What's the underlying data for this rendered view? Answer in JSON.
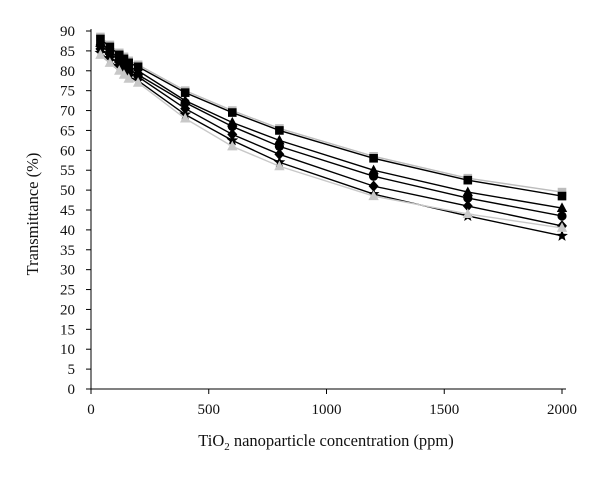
{
  "chart_data": {
    "type": "line",
    "title": "",
    "xlabel_parts": [
      "TiO",
      "2",
      " nanoparticle concentration (ppm)"
    ],
    "ylabel": "Transmittance (%)",
    "xlim": [
      0,
      2000
    ],
    "ylim": [
      0,
      90
    ],
    "x_ticks": [
      0,
      500,
      1000,
      1500,
      2000
    ],
    "y_ticks": [
      0,
      5,
      10,
      15,
      20,
      25,
      30,
      35,
      40,
      45,
      50,
      55,
      60,
      65,
      70,
      75,
      80,
      85,
      90
    ],
    "grid": false,
    "legend": "none",
    "x": [
      40,
      80,
      120,
      140,
      160,
      200,
      400,
      600,
      800,
      1200,
      1600,
      2000
    ],
    "series": [
      {
        "marker": "square",
        "color": "#bdbdbd",
        "values": [
          88.5,
          86.5,
          84.5,
          83.5,
          82.5,
          81.5,
          75,
          70,
          65.5,
          58.5,
          53,
          49.5
        ]
      },
      {
        "marker": "square",
        "color": "#000000",
        "values": [
          88,
          86,
          84,
          83,
          82,
          81,
          74.5,
          69.5,
          65,
          58,
          52.5,
          48.5
        ]
      },
      {
        "marker": "triangle",
        "color": "#000000",
        "values": [
          87,
          85,
          83,
          82,
          81,
          80,
          72.5,
          67,
          62.5,
          55,
          49.5,
          45.5
        ]
      },
      {
        "marker": "circle",
        "color": "#000000",
        "values": [
          86.5,
          84.5,
          82.5,
          81.5,
          80.5,
          79,
          72,
          66,
          61,
          53.5,
          48,
          43.5
        ]
      },
      {
        "marker": "diamond",
        "color": "#000000",
        "values": [
          85.5,
          83.5,
          81.5,
          80.5,
          79.5,
          78.5,
          70.5,
          64,
          59,
          51,
          46,
          41
        ]
      },
      {
        "marker": "star",
        "color": "#000000",
        "values": [
          84.5,
          82.5,
          80.5,
          79.5,
          78.5,
          77.5,
          69,
          62.5,
          57,
          49,
          43.5,
          38.5
        ]
      },
      {
        "marker": "triangle",
        "color": "#c8c8c8",
        "values": [
          84,
          82,
          80,
          79,
          78,
          77,
          68,
          61,
          56,
          48.5,
          44,
          40.5
        ]
      }
    ]
  }
}
